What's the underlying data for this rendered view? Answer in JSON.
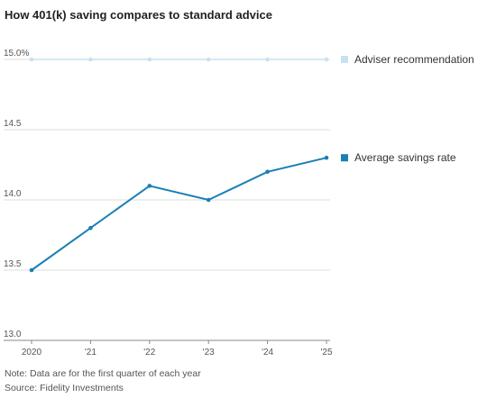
{
  "title": "How 401(k) saving compares to standard advice",
  "chart_data": {
    "type": "line",
    "title": "How 401(k) saving compares to standard advice",
    "x": [
      "2020",
      "'21",
      "'22",
      "'23",
      "'24",
      "'25"
    ],
    "ylim": [
      13.0,
      15.0
    ],
    "yticks": [
      {
        "value": 15.0,
        "label": "15.0%"
      },
      {
        "value": 14.5,
        "label": "14.5"
      },
      {
        "value": 14.0,
        "label": "14.0"
      },
      {
        "value": 13.5,
        "label": "13.5"
      },
      {
        "value": 13.0,
        "label": "13.0"
      }
    ],
    "grid": true,
    "legend_placement": "right, inline at line ends",
    "series": [
      {
        "name": "Adviser recommendation",
        "color": "#c6e2f2",
        "values": [
          15.0,
          15.0,
          15.0,
          15.0,
          15.0,
          15.0
        ]
      },
      {
        "name": "Average savings rate",
        "color": "#1a7fb5",
        "values": [
          13.5,
          13.8,
          14.1,
          14.0,
          14.2,
          14.3
        ]
      }
    ]
  },
  "notes": {
    "note": "Note: Data are for the first quarter of each year",
    "source": "Source: Fidelity Investments"
  }
}
